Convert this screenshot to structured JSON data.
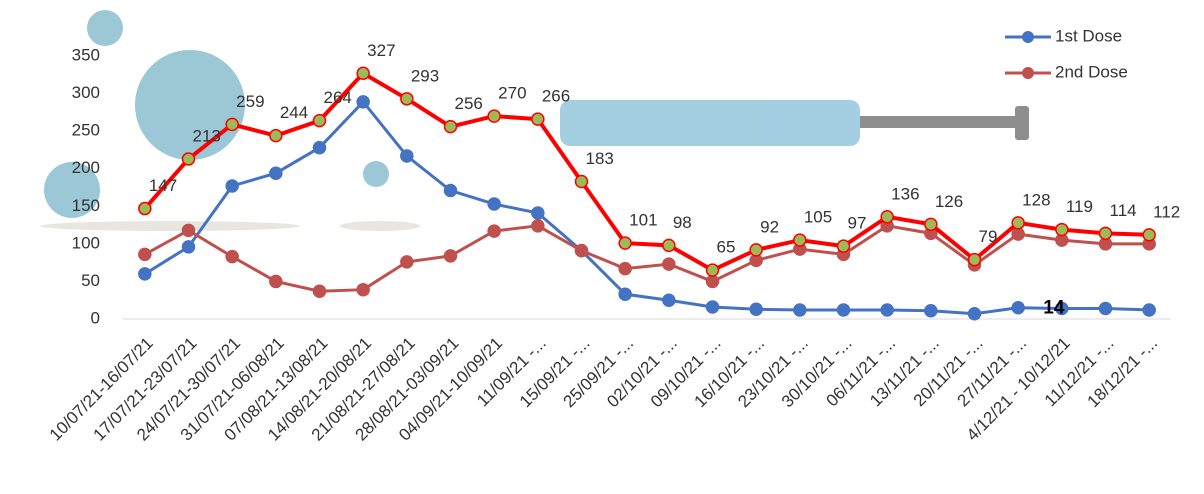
{
  "chart_data": {
    "type": "line",
    "categories": [
      "10/07/21-16/07/21",
      "17/07/21-23/07/21",
      "24/07/21-30/07/21",
      "31/07/21-06/08/21",
      "07/08/21-13/08/21",
      "14/08/21-20/08/21",
      "21/08/21-27/08/21",
      "28/08/21-03/09/21",
      "04/09/21-10/09/21",
      "11/09/21 -...",
      "15/09/21 -...",
      "25/09/21 -...",
      "02/10/21 -...",
      "09/10/21 -...",
      "16/10/21 -...",
      "23/10/21 -...",
      "30/10/21 -...",
      "06/11/21 -...",
      "13/11/21 -...",
      "20/11/21 -...",
      "27/11/21 -...",
      "4/12/21 - 10/12/21",
      "11/12/21 -...",
      "18/12/21 -..."
    ],
    "series": [
      {
        "name": "1st Dose",
        "color": "#4472c4",
        "marker_color": "#4472c4",
        "width": 3,
        "values": [
          60,
          96,
          177,
          194,
          228,
          289,
          217,
          171,
          153,
          141,
          91,
          33,
          25,
          16,
          13,
          12,
          12,
          12,
          11,
          7,
          15,
          14,
          14,
          12
        ],
        "value_labels": [
          null,
          null,
          null,
          null,
          null,
          null,
          null,
          null,
          null,
          null,
          null,
          null,
          null,
          null,
          null,
          null,
          null,
          null,
          null,
          null,
          null,
          "14",
          null,
          null
        ]
      },
      {
        "name": "2nd Dose",
        "color": "#c0504d",
        "marker_color": "#c0504d",
        "width": 3,
        "values": [
          86,
          118,
          83,
          50,
          37,
          39,
          76,
          84,
          117,
          124,
          91,
          67,
          73,
          50,
          78,
          93,
          86,
          124,
          114,
          72,
          113,
          105,
          100,
          100
        ]
      },
      {
        "color": "#ff0000",
        "marker_color": "#9bbb59",
        "width": 4,
        "labels": true,
        "values": [
          147,
          213,
          259,
          244,
          264,
          327,
          293,
          256,
          270,
          266,
          183,
          101,
          98,
          65,
          92,
          105,
          97,
          136,
          126,
          79,
          128,
          119,
          114,
          112
        ]
      }
    ],
    "ylim": [
      0,
      350
    ],
    "yticks": [
      0,
      50,
      100,
      150,
      200,
      250,
      300,
      350
    ],
    "legend": "top-right"
  }
}
